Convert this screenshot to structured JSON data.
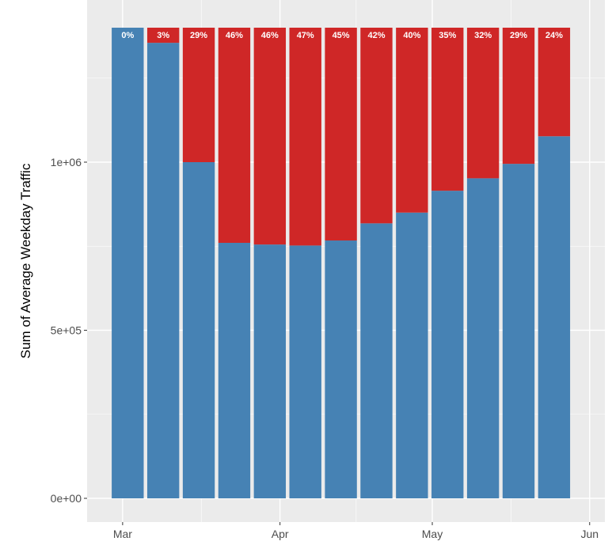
{
  "chart_data": {
    "type": "bar",
    "stacked": true,
    "title": "",
    "xlabel": "",
    "ylabel": "Sum of Average Weekday Traffic",
    "ylim": [
      0,
      1420000
    ],
    "xlim": [
      "2020-02-23",
      "2020-06-04"
    ],
    "y_ticks": [
      {
        "value": 0,
        "label": "0e+00"
      },
      {
        "value": 500000,
        "label": "5e+05"
      },
      {
        "value": 1000000,
        "label": "1e+06"
      }
    ],
    "x_ticks": [
      {
        "date": "2020-03-01",
        "label": "Mar"
      },
      {
        "date": "2020-04-01",
        "label": "Apr"
      },
      {
        "date": "2020-05-01",
        "label": "May"
      },
      {
        "date": "2020-06-01",
        "label": "Jun"
      }
    ],
    "x": [
      "2020-03-02",
      "2020-03-09",
      "2020-03-16",
      "2020-03-23",
      "2020-03-30",
      "2020-04-06",
      "2020-04-13",
      "2020-04-20",
      "2020-04-27",
      "2020-05-04",
      "2020-05-11",
      "2020-05-18",
      "2020-05-25"
    ],
    "series": [
      {
        "name": "",
        "color": "#4682b4",
        "values": [
          1400000,
          1355000,
          1000000,
          760000,
          755000,
          752000,
          767000,
          818000,
          850000,
          915000,
          952000,
          995000,
          1077000
        ]
      },
      {
        "name": "",
        "color": "#cf2727",
        "values": [
          0,
          45000,
          400000,
          640000,
          645000,
          648000,
          633000,
          582000,
          550000,
          485000,
          448000,
          405000,
          323000
        ]
      }
    ],
    "data_labels": [
      "0%",
      "3%",
      "29%",
      "46%",
      "46%",
      "47%",
      "45%",
      "42%",
      "40%",
      "35%",
      "32%",
      "29%",
      "24%"
    ],
    "grid": true,
    "legend": "none",
    "panel_background": "#ebebeb",
    "gridline_color": "#ffffff"
  }
}
